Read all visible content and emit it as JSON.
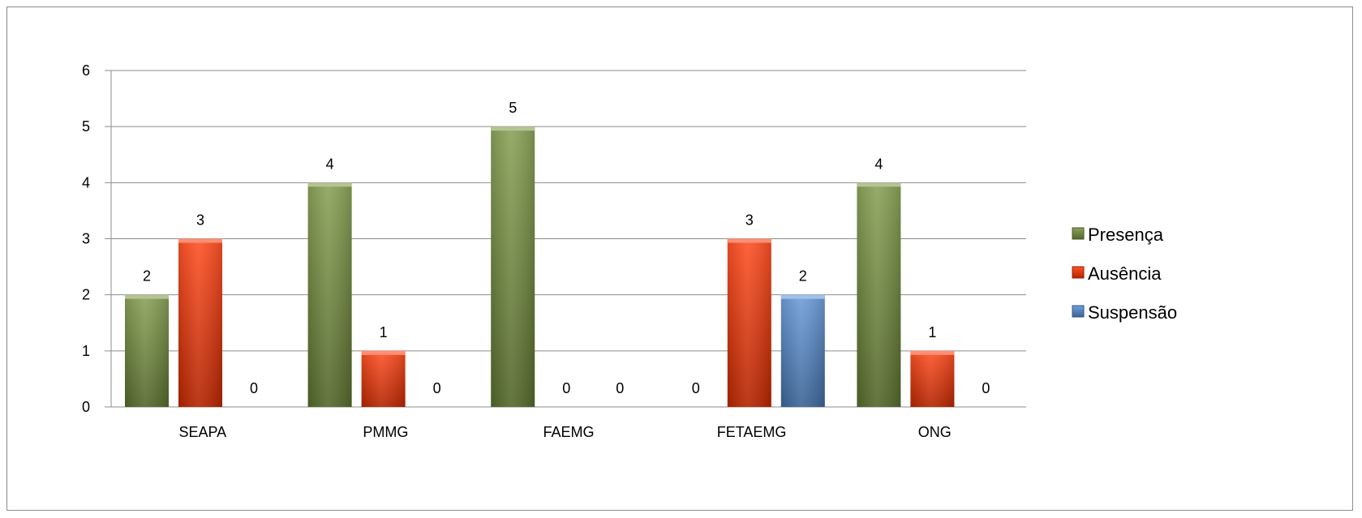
{
  "chart_data": {
    "type": "bar",
    "categories": [
      "SEAPA",
      "PMMG",
      "FAEMG",
      "FETAEMG",
      "ONG"
    ],
    "series": [
      {
        "name": "Presença",
        "values": [
          2,
          4,
          5,
          0,
          4
        ],
        "color": "#77933C"
      },
      {
        "name": "Ausência",
        "values": [
          3,
          1,
          0,
          3,
          1
        ],
        "color": "#FF3300"
      },
      {
        "name": "Suspensão",
        "values": [
          0,
          0,
          0,
          2,
          0
        ],
        "color": "#558ED5"
      }
    ],
    "ylim": [
      0,
      6
    ],
    "yticks": [
      0,
      1,
      2,
      3,
      4,
      5,
      6
    ],
    "grid": true,
    "legend": "right",
    "data_labels": true
  }
}
